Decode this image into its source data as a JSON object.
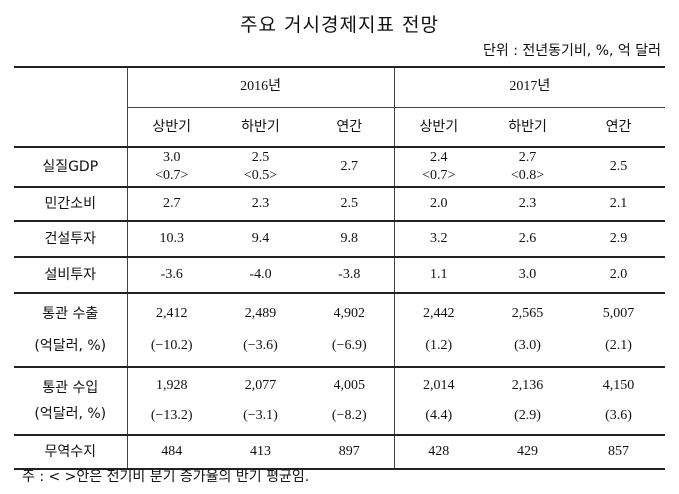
{
  "title": "주요 거시경제지표 전망",
  "unit": "단위 : 전년동기비, %, 억 달러",
  "years": [
    "2016년",
    "2017년"
  ],
  "periods": [
    "상반기",
    "하반기",
    "연간",
    "상반기",
    "하반기",
    "연간"
  ],
  "rows": [
    {
      "label": "실질GDP",
      "sub": "",
      "vals": [
        "3.0",
        "2.5",
        "2.7",
        "2.4",
        "2.7",
        "2.5"
      ],
      "subs": [
        "<0.7>",
        "<0.5>",
        "",
        "<0.7>",
        "<0.8>",
        ""
      ]
    },
    {
      "label": "민간소비",
      "sub": "",
      "vals": [
        "2.7",
        "2.3",
        "2.5",
        "2.0",
        "2.3",
        "2.1"
      ],
      "subs": [
        "",
        "",
        "",
        "",
        "",
        ""
      ]
    },
    {
      "label": "건설투자",
      "sub": "",
      "vals": [
        "10.3",
        "9.4",
        "9.8",
        "3.2",
        "2.6",
        "2.9"
      ],
      "subs": [
        "",
        "",
        "",
        "",
        "",
        ""
      ]
    },
    {
      "label": "설비투자",
      "sub": "",
      "vals": [
        "-3.6",
        "-4.0",
        "-3.8",
        "1.1",
        "3.0",
        "2.0"
      ],
      "subs": [
        "",
        "",
        "",
        "",
        "",
        ""
      ]
    },
    {
      "label": "통관 수출",
      "sub": "(억달러, %)",
      "vals": [
        "2,412",
        "2,489",
        "4,902",
        "2,442",
        "2,565",
        "5,007"
      ],
      "subs": [
        "(−10.2)",
        "(−3.6)",
        "(−6.9)",
        "(1.2)",
        "(3.0)",
        "(2.1)"
      ]
    },
    {
      "label": "통관 수입",
      "sub": "(억달러, %)",
      "vals": [
        "1,928",
        "2,077",
        "4,005",
        "2,014",
        "2,136",
        "4,150"
      ],
      "subs": [
        "(−13.2)",
        "(−3.1)",
        "(−8.2)",
        "(4.4)",
        "(2.9)",
        "(3.6)"
      ]
    },
    {
      "label": "무역수지",
      "sub": "",
      "vals": [
        "484",
        "413",
        "897",
        "428",
        "429",
        "857"
      ],
      "subs": [
        "",
        "",
        "",
        "",
        "",
        ""
      ]
    }
  ],
  "note": "주 : < >안은 전기비 분기 증가율의 반기 평균임."
}
